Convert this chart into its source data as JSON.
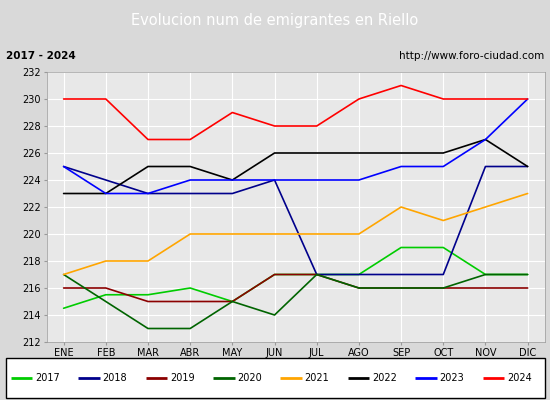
{
  "title": "Evolucion num de emigrantes en Riello",
  "subtitle_left": "2017 - 2024",
  "subtitle_right": "http://www.foro-ciudad.com",
  "months": [
    "ENE",
    "FEB",
    "MAR",
    "ABR",
    "MAY",
    "JUN",
    "JUL",
    "AGO",
    "SEP",
    "OCT",
    "NOV",
    "DIC"
  ],
  "ylim": [
    212,
    232
  ],
  "yticks": [
    212,
    214,
    216,
    218,
    220,
    222,
    224,
    226,
    228,
    230,
    232
  ],
  "series": {
    "2017": {
      "color": "#00cc00",
      "values": [
        214.5,
        215.5,
        215.5,
        216,
        215,
        217,
        217,
        217,
        219,
        219,
        217,
        217
      ]
    },
    "2018": {
      "color": "#00008B",
      "values": [
        225,
        224,
        223,
        223,
        223,
        224,
        217,
        217,
        217,
        217,
        225,
        225
      ]
    },
    "2019": {
      "color": "#8B0000",
      "values": [
        216,
        216,
        215,
        215,
        215,
        217,
        217,
        216,
        216,
        216,
        216,
        216
      ]
    },
    "2020": {
      "color": "#006400",
      "values": [
        217,
        215,
        213,
        213,
        215,
        214,
        217,
        216,
        216,
        216,
        217,
        217
      ]
    },
    "2021": {
      "color": "#FFA500",
      "values": [
        217,
        218,
        218,
        220,
        220,
        220,
        220,
        220,
        222,
        221,
        222,
        223
      ]
    },
    "2022": {
      "color": "#000000",
      "values": [
        223,
        223,
        225,
        225,
        224,
        226,
        226,
        226,
        226,
        226,
        227,
        225
      ]
    },
    "2023": {
      "color": "#0000FF",
      "values": [
        225,
        223,
        223,
        224,
        224,
        224,
        224,
        224,
        225,
        225,
        227,
        230
      ]
    },
    "2024": {
      "color": "#FF0000",
      "values": [
        230,
        230,
        227,
        227,
        229,
        228,
        228,
        230,
        231,
        230,
        230,
        230
      ]
    }
  },
  "title_bg_color": "#4f81bd",
  "title_color": "#ffffff",
  "subtitle_bg_color": "#d9d9d9",
  "plot_bg_color": "#e8e8e8",
  "grid_color": "#ffffff",
  "legend_border_color": "#000000",
  "fig_bg_color": "#d9d9d9"
}
